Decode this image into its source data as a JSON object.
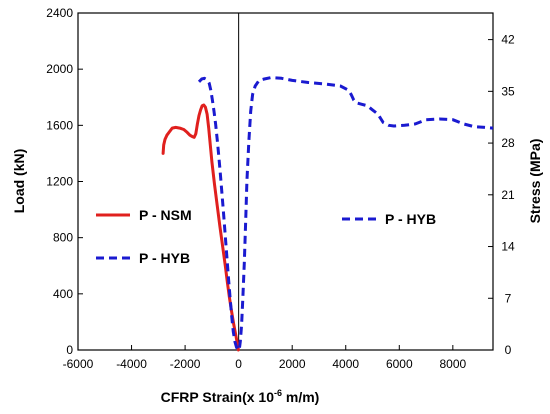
{
  "chart_data": {
    "type": "line",
    "xlabel": "CFRP Strain(x 10",
    "xlabel_sup": "-6",
    "xlabel_unit": " m/m)",
    "ylabel_left": "Load (kN)",
    "ylabel_right": "Stress (MPa)",
    "xlim": [
      -6000,
      9500
    ],
    "ylim_left": [
      0,
      2400
    ],
    "ylim_right": [
      0,
      45.6
    ],
    "x_ticks": [
      -6000,
      -4000,
      -2000,
      0,
      2000,
      4000,
      6000,
      8000
    ],
    "x_tick_labels": [
      "-6000",
      "-4000",
      "-2000",
      "0",
      "2000",
      "4000",
      "6000",
      "8000"
    ],
    "y_left_ticks": [
      0,
      400,
      800,
      1200,
      1600,
      2000,
      2400
    ],
    "y_left_tick_labels": [
      "0",
      "400",
      "800",
      "1200",
      "1600",
      "2000",
      "2400"
    ],
    "y_right_ticks": [
      0,
      7,
      14,
      21,
      28,
      35,
      42
    ],
    "y_right_tick_labels": [
      "0",
      "7",
      "14",
      "21",
      "28",
      "35",
      "42"
    ],
    "zero_line_x": 0,
    "series": [
      {
        "name": "P - NSM",
        "color": "#e0201e",
        "style": "solid",
        "axis": "left",
        "x": [
          -2820,
          -2800,
          -2750,
          -2680,
          -2600,
          -2480,
          -2350,
          -2200,
          -2050,
          -1920,
          -1820,
          -1730,
          -1660,
          -1600,
          -1540,
          -1480,
          -1420,
          -1360,
          -1300,
          -1240,
          -1180,
          -1120,
          -1060,
          -1000,
          -900,
          -800,
          -700,
          -600,
          -500,
          -420,
          -340,
          -260,
          -180,
          -110,
          -60,
          -30,
          -10
        ],
        "y": [
          1400,
          1460,
          1500,
          1530,
          1550,
          1580,
          1585,
          1580,
          1570,
          1550,
          1530,
          1520,
          1515,
          1540,
          1610,
          1670,
          1710,
          1740,
          1745,
          1730,
          1680,
          1580,
          1460,
          1340,
          1180,
          1030,
          880,
          740,
          600,
          480,
          370,
          270,
          180,
          110,
          60,
          30,
          0
        ]
      },
      {
        "name": "P - HYB",
        "color": "#1a1ad0",
        "style": "dashed",
        "axis": "left",
        "x": [
          -1480,
          -1380,
          -1280,
          -1180,
          -1100,
          -1040,
          -980,
          -920,
          -860,
          -800,
          -740,
          -680,
          -620,
          -560,
          -500,
          -440,
          -380,
          -320,
          -260,
          -200,
          -140,
          -80,
          -40,
          0,
          20,
          60,
          110,
          160,
          210,
          260,
          310,
          380,
          450,
          520,
          620,
          760,
          960,
          1200,
          1600,
          2000,
          2600,
          3200,
          3800,
          4100,
          4200,
          4300,
          4400,
          4600,
          4800,
          5000,
          5200,
          5400,
          5600,
          5800,
          6200,
          6600,
          7000,
          7500,
          8000,
          8400,
          8800,
          9200,
          9500
        ],
        "y": [
          1910,
          1930,
          1935,
          1925,
          1900,
          1850,
          1780,
          1700,
          1610,
          1500,
          1380,
          1250,
          1110,
          960,
          810,
          660,
          510,
          370,
          240,
          130,
          60,
          20,
          5,
          0,
          0,
          60,
          180,
          380,
          620,
          900,
          1200,
          1480,
          1700,
          1820,
          1880,
          1920,
          1930,
          1940,
          1935,
          1920,
          1905,
          1895,
          1880,
          1850,
          1820,
          1780,
          1760,
          1750,
          1740,
          1710,
          1680,
          1620,
          1600,
          1595,
          1600,
          1610,
          1640,
          1645,
          1640,
          1610,
          1590,
          1585,
          1580
        ]
      }
    ],
    "legend": [
      {
        "label": "P - NSM",
        "color": "#e0201e",
        "style": "solid"
      },
      {
        "label": "P - HYB",
        "color": "#1a1ad0",
        "style": "dashed"
      },
      {
        "label": "P - HYB",
        "color": "#1a1ad0",
        "style": "dashed"
      }
    ]
  }
}
